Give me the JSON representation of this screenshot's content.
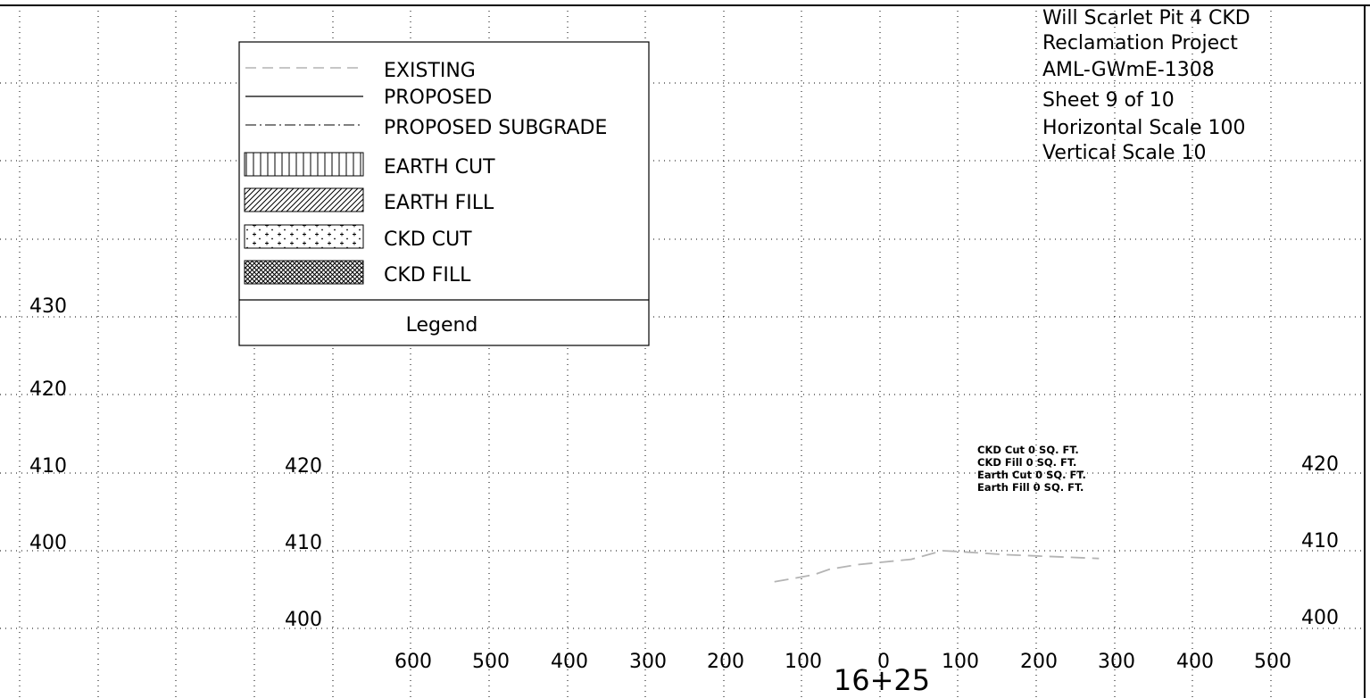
{
  "title_block": {
    "lines": [
      "Will Scarlet Pit 4 CKD",
      "Reclamation Project",
      "AML-GWmE-1308",
      "Sheet 9 of 10",
      "Horizontal Scale 100",
      "Vertical Scale 10"
    ]
  },
  "legend": {
    "title": "Legend",
    "items": [
      {
        "label": "EXISTING",
        "symbol": "dashed-line"
      },
      {
        "label": "PROPOSED",
        "symbol": "solid-line"
      },
      {
        "label": "PROPOSED SUBGRADE",
        "symbol": "dash-dot-line"
      },
      {
        "label": "EARTH CUT",
        "symbol": "vertical-hatch"
      },
      {
        "label": "EARTH FILL",
        "symbol": "diagonal-hatch"
      },
      {
        "label": "CKD CUT",
        "symbol": "plus-dot-pattern"
      },
      {
        "label": "CKD FILL",
        "symbol": "crosshatch"
      }
    ]
  },
  "elevation_labels": {
    "outer_left": [
      "430",
      "420",
      "410",
      "400"
    ],
    "inner_left": [
      "420",
      "410",
      "400"
    ],
    "right": [
      "420",
      "410",
      "400"
    ]
  },
  "offset_labels": {
    "left": [
      "600",
      "500",
      "400",
      "300",
      "200",
      "100",
      "0"
    ],
    "right": [
      "100",
      "200",
      "300",
      "400",
      "500"
    ]
  },
  "station": "16+25",
  "quantities": [
    "CKD Cut 0 SQ. FT.",
    "CKD Fill 0 SQ. FT.",
    "Earth Cut 0 SQ. FT.",
    "Earth Fill 0 SQ. FT."
  ],
  "existing_ground_profile": {
    "units": "offset ft / elevation ft",
    "points": [
      [
        -135,
        406.0
      ],
      [
        -85,
        406.9
      ],
      [
        -65,
        407.6
      ],
      [
        -30,
        408.2
      ],
      [
        40,
        408.9
      ],
      [
        80,
        410.0
      ],
      [
        100,
        409.9
      ],
      [
        160,
        409.5
      ],
      [
        280,
        409.0
      ]
    ]
  },
  "colors": {
    "line": "#000000",
    "grid": "#000000",
    "existing_profile": "#b4b4b4",
    "background": "#ffffff"
  }
}
